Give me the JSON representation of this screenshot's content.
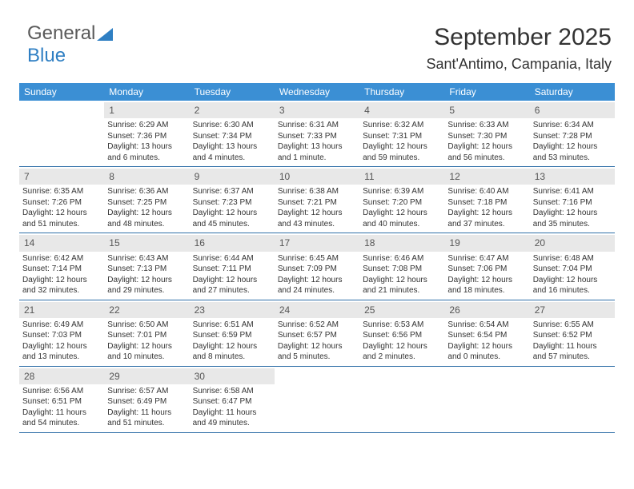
{
  "logo": {
    "text1": "General",
    "text2": "Blue"
  },
  "title": "September 2025",
  "location": "Sant'Antimo, Campania, Italy",
  "colors": {
    "header_bg": "#3b8fd4",
    "header_text": "#ffffff",
    "daynum_bg": "#e8e8e8",
    "week_border": "#2f6fa8",
    "text": "#333333",
    "logo_gray": "#5a5a5a",
    "logo_blue": "#2f7fc3"
  },
  "fonts": {
    "title_size": 30,
    "location_size": 18,
    "dayheader_size": 12,
    "cell_size": 10
  },
  "day_names": [
    "Sunday",
    "Monday",
    "Tuesday",
    "Wednesday",
    "Thursday",
    "Friday",
    "Saturday"
  ],
  "weeks": [
    [
      null,
      {
        "n": "1",
        "sr": "6:29 AM",
        "ss": "7:36 PM",
        "dl": "13 hours and 6 minutes."
      },
      {
        "n": "2",
        "sr": "6:30 AM",
        "ss": "7:34 PM",
        "dl": "13 hours and 4 minutes."
      },
      {
        "n": "3",
        "sr": "6:31 AM",
        "ss": "7:33 PM",
        "dl": "13 hours and 1 minute."
      },
      {
        "n": "4",
        "sr": "6:32 AM",
        "ss": "7:31 PM",
        "dl": "12 hours and 59 minutes."
      },
      {
        "n": "5",
        "sr": "6:33 AM",
        "ss": "7:30 PM",
        "dl": "12 hours and 56 minutes."
      },
      {
        "n": "6",
        "sr": "6:34 AM",
        "ss": "7:28 PM",
        "dl": "12 hours and 53 minutes."
      }
    ],
    [
      {
        "n": "7",
        "sr": "6:35 AM",
        "ss": "7:26 PM",
        "dl": "12 hours and 51 minutes."
      },
      {
        "n": "8",
        "sr": "6:36 AM",
        "ss": "7:25 PM",
        "dl": "12 hours and 48 minutes."
      },
      {
        "n": "9",
        "sr": "6:37 AM",
        "ss": "7:23 PM",
        "dl": "12 hours and 45 minutes."
      },
      {
        "n": "10",
        "sr": "6:38 AM",
        "ss": "7:21 PM",
        "dl": "12 hours and 43 minutes."
      },
      {
        "n": "11",
        "sr": "6:39 AM",
        "ss": "7:20 PM",
        "dl": "12 hours and 40 minutes."
      },
      {
        "n": "12",
        "sr": "6:40 AM",
        "ss": "7:18 PM",
        "dl": "12 hours and 37 minutes."
      },
      {
        "n": "13",
        "sr": "6:41 AM",
        "ss": "7:16 PM",
        "dl": "12 hours and 35 minutes."
      }
    ],
    [
      {
        "n": "14",
        "sr": "6:42 AM",
        "ss": "7:14 PM",
        "dl": "12 hours and 32 minutes."
      },
      {
        "n": "15",
        "sr": "6:43 AM",
        "ss": "7:13 PM",
        "dl": "12 hours and 29 minutes."
      },
      {
        "n": "16",
        "sr": "6:44 AM",
        "ss": "7:11 PM",
        "dl": "12 hours and 27 minutes."
      },
      {
        "n": "17",
        "sr": "6:45 AM",
        "ss": "7:09 PM",
        "dl": "12 hours and 24 minutes."
      },
      {
        "n": "18",
        "sr": "6:46 AM",
        "ss": "7:08 PM",
        "dl": "12 hours and 21 minutes."
      },
      {
        "n": "19",
        "sr": "6:47 AM",
        "ss": "7:06 PM",
        "dl": "12 hours and 18 minutes."
      },
      {
        "n": "20",
        "sr": "6:48 AM",
        "ss": "7:04 PM",
        "dl": "12 hours and 16 minutes."
      }
    ],
    [
      {
        "n": "21",
        "sr": "6:49 AM",
        "ss": "7:03 PM",
        "dl": "12 hours and 13 minutes."
      },
      {
        "n": "22",
        "sr": "6:50 AM",
        "ss": "7:01 PM",
        "dl": "12 hours and 10 minutes."
      },
      {
        "n": "23",
        "sr": "6:51 AM",
        "ss": "6:59 PM",
        "dl": "12 hours and 8 minutes."
      },
      {
        "n": "24",
        "sr": "6:52 AM",
        "ss": "6:57 PM",
        "dl": "12 hours and 5 minutes."
      },
      {
        "n": "25",
        "sr": "6:53 AM",
        "ss": "6:56 PM",
        "dl": "12 hours and 2 minutes."
      },
      {
        "n": "26",
        "sr": "6:54 AM",
        "ss": "6:54 PM",
        "dl": "12 hours and 0 minutes."
      },
      {
        "n": "27",
        "sr": "6:55 AM",
        "ss": "6:52 PM",
        "dl": "11 hours and 57 minutes."
      }
    ],
    [
      {
        "n": "28",
        "sr": "6:56 AM",
        "ss": "6:51 PM",
        "dl": "11 hours and 54 minutes."
      },
      {
        "n": "29",
        "sr": "6:57 AM",
        "ss": "6:49 PM",
        "dl": "11 hours and 51 minutes."
      },
      {
        "n": "30",
        "sr": "6:58 AM",
        "ss": "6:47 PM",
        "dl": "11 hours and 49 minutes."
      },
      null,
      null,
      null,
      null
    ]
  ],
  "labels": {
    "sunrise": "Sunrise:",
    "sunset": "Sunset:",
    "daylight": "Daylight:"
  }
}
